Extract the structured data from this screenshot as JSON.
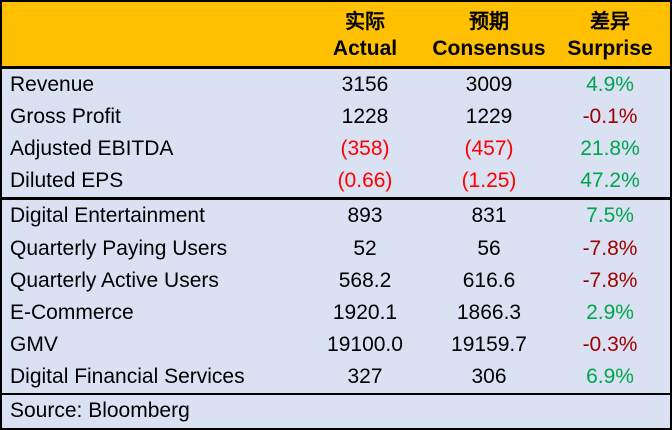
{
  "header": {
    "columns": [
      {
        "cn": "实际",
        "en": "Actual"
      },
      {
        "cn": "预期",
        "en": "Consensus"
      },
      {
        "cn": "差异",
        "en": "Surprise"
      }
    ]
  },
  "rows": [
    {
      "label": "Revenue",
      "actual": "3156",
      "consensus": "3009",
      "surprise": "4.9%",
      "actual_class": "normal",
      "consensus_class": "normal",
      "surprise_class": "positive"
    },
    {
      "label": "Gross Profit",
      "actual": "1228",
      "consensus": "1229",
      "surprise": "-0.1%",
      "actual_class": "normal",
      "consensus_class": "normal",
      "surprise_class": "negative"
    },
    {
      "label": "Adjusted EBITDA",
      "actual": "(358)",
      "consensus": "(457)",
      "surprise": "21.8%",
      "actual_class": "negative",
      "consensus_class": "negative",
      "surprise_class": "positive"
    },
    {
      "label": "Diluted EPS",
      "actual": "(0.66)",
      "consensus": "(1.25)",
      "surprise": "47.2%",
      "actual_class": "negative",
      "consensus_class": "negative",
      "surprise_class": "positive"
    },
    {
      "label": "Digital Entertainment",
      "actual": "893",
      "consensus": "831",
      "surprise": "7.5%",
      "actual_class": "normal",
      "consensus_class": "normal",
      "surprise_class": "positive"
    },
    {
      "label": "Quarterly Paying Users",
      "actual": "52",
      "consensus": "56",
      "surprise": "-7.8%",
      "actual_class": "normal",
      "consensus_class": "normal",
      "surprise_class": "negative"
    },
    {
      "label": "Quarterly Active Users",
      "actual": "568.2",
      "consensus": "616.6",
      "surprise": "-7.8%",
      "actual_class": "normal",
      "consensus_class": "normal",
      "surprise_class": "negative"
    },
    {
      "label": "E-Commerce",
      "actual": "1920.1",
      "consensus": "1866.3",
      "surprise": "2.9%",
      "actual_class": "normal",
      "consensus_class": "normal",
      "surprise_class": "positive"
    },
    {
      "label": "GMV",
      "actual": "19100.0",
      "consensus": "19159.7",
      "surprise": "-0.3%",
      "actual_class": "normal",
      "consensus_class": "normal",
      "surprise_class": "negative"
    },
    {
      "label": "Digital Financial Services",
      "actual": "327",
      "consensus": "306",
      "surprise": "6.9%",
      "actual_class": "normal",
      "consensus_class": "normal",
      "surprise_class": "positive"
    }
  ],
  "footer": {
    "source": "Source: Bloomberg"
  },
  "colors": {
    "header_bg": "#FFC000",
    "body_bg": "#D9E1F2",
    "border": "#000000",
    "value_negative": "#FF0000",
    "surprise_positive": "#00A550",
    "surprise_negative": "#A00000"
  },
  "chart_data": {
    "type": "table",
    "title": "Earnings results: Actual vs Consensus",
    "columns_cn": [
      "实际",
      "预期",
      "差异"
    ],
    "columns_en": [
      "Actual",
      "Consensus",
      "Surprise"
    ],
    "metrics": [
      "Revenue",
      "Gross Profit",
      "Adjusted EBITDA",
      "Diluted EPS",
      "Digital Entertainment",
      "Quarterly Paying Users",
      "Quarterly Active Users",
      "E-Commerce",
      "GMV",
      "Digital Financial Services"
    ],
    "actual": [
      3156,
      1228,
      -358,
      -0.66,
      893,
      52,
      568.2,
      1920.1,
      19100.0,
      327
    ],
    "consensus": [
      3009,
      1229,
      -457,
      -1.25,
      831,
      56,
      616.6,
      1866.3,
      19159.7,
      306
    ],
    "surprise_pct": [
      4.9,
      -0.1,
      21.8,
      47.2,
      7.5,
      -7.8,
      -7.8,
      2.9,
      -0.3,
      6.9
    ],
    "section_break_after": "Diluted EPS",
    "source": "Source: Bloomberg"
  }
}
